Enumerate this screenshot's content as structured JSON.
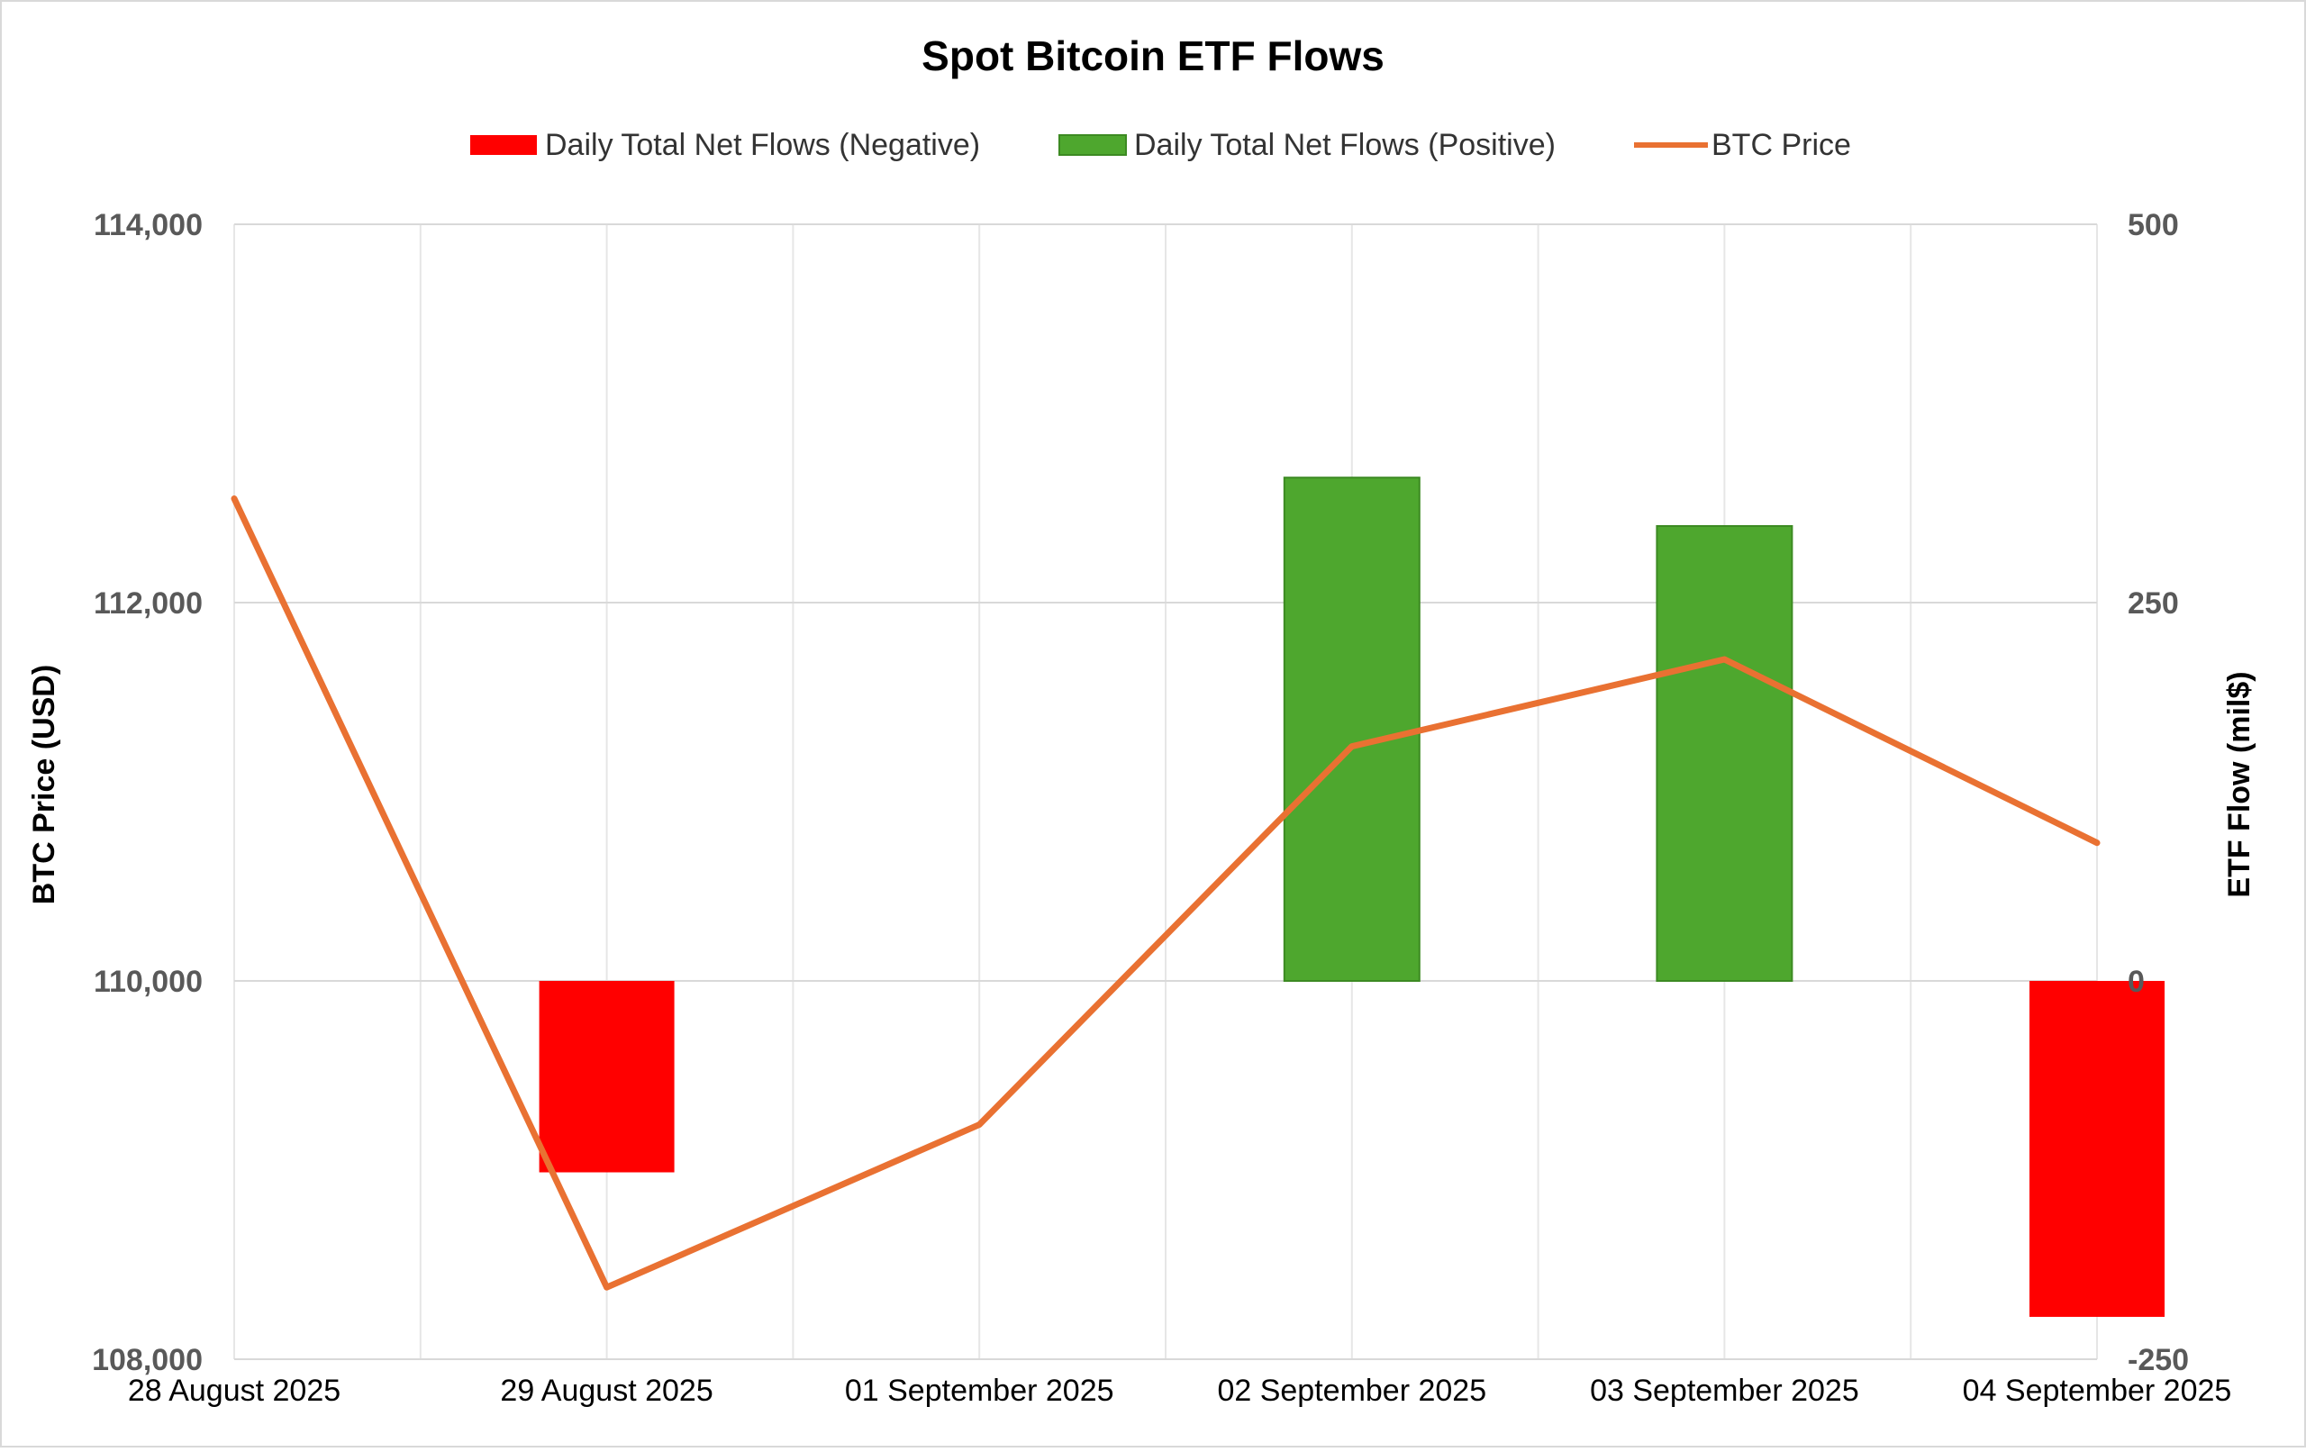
{
  "chart_data": {
    "type": "bar",
    "title": "Spot Bitcoin ETF Flows",
    "categories": [
      "28 August 2025",
      "29 August 2025",
      "01 September 2025",
      "02 September 2025",
      "03 September 2025",
      "04 September 2025"
    ],
    "series": [
      {
        "name": "Daily Total Net Flows (Negative)",
        "type": "bar",
        "axis": "right",
        "color": "#ff0000",
        "values": [
          0,
          -126.5,
          0,
          0,
          0,
          -222
        ]
      },
      {
        "name": "Daily Total Net Flows (Positive)",
        "type": "bar",
        "axis": "right",
        "color": "#4ea72e",
        "values": [
          0,
          0,
          0,
          332.6,
          300.6,
          0
        ]
      },
      {
        "name": "BTC Price",
        "type": "line",
        "axis": "left",
        "color": "#e97132",
        "values": [
          112550,
          108380,
          109240,
          111240,
          111700,
          110730
        ]
      }
    ],
    "ylabel": "BTC Price (USD)",
    "y2label": "ETF Flow (mil$)",
    "ylim": [
      108000,
      114000
    ],
    "y2lim": [
      -250,
      500
    ],
    "yticks": [
      "108,000",
      "110,000",
      "112,000",
      "114,000"
    ],
    "y2ticks": [
      "-250",
      "0",
      "250",
      "500"
    ],
    "legend_position": "top",
    "grid": true
  }
}
